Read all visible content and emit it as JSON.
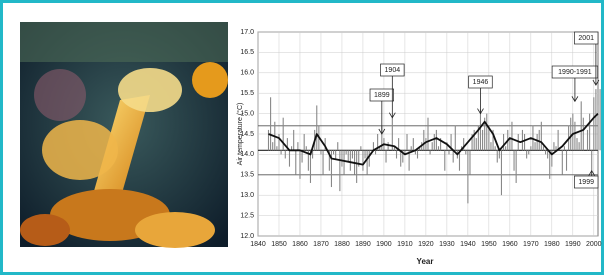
{
  "chart_data": {
    "type": "bar",
    "x_label": "Year",
    "y_label": "Air temperature (°C)",
    "xlim": [
      1840,
      2002
    ],
    "xticks": [
      1840,
      1850,
      1860,
      1870,
      1880,
      1890,
      1900,
      1910,
      1920,
      1930,
      1940,
      1950,
      1960,
      1970,
      1980,
      1990,
      2000
    ],
    "ylim": [
      12,
      17
    ],
    "yticks": [
      {
        "value": 12,
        "label": "12.0"
      },
      12.5,
      {
        "value": 13,
        "label": "13.0"
      },
      13.5,
      {
        "value": 14,
        "label": "14.0"
      },
      14.5,
      {
        "value": 15,
        "label": "15.0"
      },
      15.5,
      {
        "value": 16,
        "label": "16.0"
      },
      16.5,
      {
        "value": 17,
        "label": "17.0"
      }
    ],
    "grid": true,
    "baseline": 14.1,
    "reference_lines": [
      14.7,
      13.5
    ],
    "series": [
      {
        "type": "bar",
        "color": "#888888",
        "x": [
          1845,
          1846,
          1847,
          1848,
          1849,
          1850,
          1851,
          1852,
          1853,
          1854,
          1855,
          1856,
          1857,
          1858,
          1859,
          1860,
          1861,
          1862,
          1863,
          1864,
          1865,
          1866,
          1867,
          1868,
          1869,
          1870,
          1871,
          1872,
          1873,
          1874,
          1875,
          1876,
          1877,
          1878,
          1879,
          1880,
          1881,
          1882,
          1883,
          1884,
          1885,
          1886,
          1887,
          1888,
          1889,
          1890,
          1891,
          1892,
          1893,
          1894,
          1895,
          1896,
          1897,
          1898,
          1899,
          1900,
          1901,
          1902,
          1903,
          1904,
          1905,
          1906,
          1907,
          1908,
          1909,
          1910,
          1911,
          1912,
          1913,
          1914,
          1915,
          1916,
          1917,
          1918,
          1919,
          1920,
          1921,
          1922,
          1923,
          1924,
          1925,
          1926,
          1927,
          1928,
          1929,
          1930,
          1931,
          1932,
          1933,
          1934,
          1935,
          1936,
          1937,
          1938,
          1939,
          1940,
          1941,
          1942,
          1943,
          1944,
          1945,
          1946,
          1947,
          1948,
          1949,
          1950,
          1951,
          1952,
          1953,
          1954,
          1955,
          1956,
          1957,
          1958,
          1959,
          1960,
          1961,
          1962,
          1963,
          1964,
          1965,
          1966,
          1967,
          1968,
          1969,
          1970,
          1971,
          1972,
          1973,
          1974,
          1975,
          1976,
          1977,
          1978,
          1979,
          1980,
          1981,
          1982,
          1983,
          1984,
          1985,
          1986,
          1987,
          1988,
          1989,
          1990,
          1991,
          1992,
          1993,
          1994,
          1995,
          1996,
          1997,
          1998,
          1999,
          2000,
          2001,
          2002,
          2003
        ],
        "values": [
          14.6,
          15.4,
          14.3,
          14.8,
          14.2,
          14.5,
          14.0,
          14.9,
          13.9,
          14.4,
          13.7,
          14.2,
          14.6,
          13.5,
          14.3,
          13.4,
          13.8,
          14.5,
          14.2,
          13.6,
          13.3,
          13.9,
          14.6,
          15.2,
          14.7,
          14.0,
          13.5,
          14.4,
          14.1,
          13.6,
          13.2,
          14.0,
          13.9,
          14.3,
          13.1,
          13.7,
          13.5,
          14.0,
          13.8,
          13.6,
          13.9,
          13.5,
          13.3,
          13.7,
          14.2,
          13.6,
          13.9,
          13.5,
          13.7,
          14.1,
          14.3,
          14.0,
          14.5,
          14.2,
          14.7,
          14.4,
          13.8,
          14.3,
          14.1,
          14.9,
          14.2,
          13.9,
          14.4,
          13.7,
          13.8,
          14.0,
          14.5,
          13.6,
          14.2,
          14.4,
          14.0,
          13.9,
          14.2,
          14.3,
          14.6,
          14.4,
          14.9,
          14.0,
          14.3,
          14.5,
          14.6,
          14.2,
          14.4,
          14.1,
          13.6,
          14.3,
          14.0,
          14.5,
          13.8,
          14.7,
          13.9,
          13.6,
          14.2,
          14.4,
          14.0,
          12.8,
          13.5,
          14.5,
          14.6,
          14.4,
          14.7,
          15.1,
          14.6,
          14.9,
          15.0,
          14.7,
          14.3,
          14.6,
          14.2,
          13.8,
          13.9,
          13.0,
          14.5,
          14.2,
          14.6,
          14.4,
          14.8,
          13.6,
          13.3,
          14.5,
          14.1,
          14.6,
          14.5,
          13.9,
          14.0,
          14.2,
          14.7,
          14.3,
          14.5,
          14.6,
          14.8,
          14.2,
          14.0,
          13.9,
          13.4,
          13.7,
          14.3,
          14.2,
          14.6,
          14.1,
          13.5,
          14.2,
          13.6,
          14.7,
          14.9,
          15.0,
          14.8,
          14.4,
          14.3,
          15.3,
          14.9,
          14.1,
          14.6,
          15.0,
          13.6,
          15.4,
          15.6,
          15.2,
          15.6
        ]
      },
      {
        "type": "line",
        "color": "#111111",
        "x": [
          1845,
          1850,
          1855,
          1860,
          1865,
          1868,
          1872,
          1875,
          1880,
          1885,
          1890,
          1895,
          1900,
          1905,
          1910,
          1915,
          1920,
          1925,
          1930,
          1935,
          1940,
          1945,
          1948,
          1952,
          1955,
          1960,
          1965,
          1970,
          1975,
          1980,
          1985,
          1990,
          1995,
          2000,
          2002
        ],
        "values": [
          14.5,
          14.4,
          14.1,
          14.1,
          14.0,
          14.5,
          14.2,
          13.9,
          13.85,
          13.8,
          13.75,
          14.1,
          14.25,
          14.2,
          14.0,
          14.1,
          14.3,
          14.4,
          14.25,
          14.0,
          14.3,
          14.6,
          14.8,
          14.5,
          14.1,
          14.4,
          14.3,
          14.4,
          14.3,
          14.0,
          14.2,
          14.5,
          14.6,
          14.9,
          15.0
        ]
      }
    ],
    "annotations": [
      {
        "text": "1899",
        "x": 1899,
        "y": 14.5
      },
      {
        "text": "1904",
        "x": 1904,
        "y": 14.9
      },
      {
        "text": "1946",
        "x": 1946,
        "y": 15.0
      },
      {
        "text": "1990-1991",
        "x": 1991,
        "y": 15.3
      },
      {
        "text": "2001",
        "x": 2001,
        "y": 15.7
      },
      {
        "text": "1999",
        "x": 1999,
        "y": 13.6
      }
    ]
  }
}
